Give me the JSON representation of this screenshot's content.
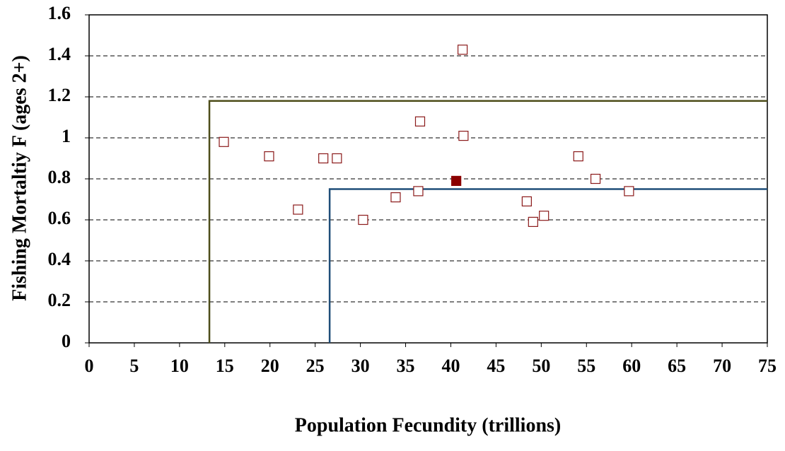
{
  "chart_data": {
    "type": "scatter",
    "x_label": "Population Fecundity (trillions)",
    "y_label": "Fishing Mortaltiy F (ages 2+)",
    "xlim": [
      0,
      75
    ],
    "xticks": [
      0,
      5,
      10,
      15,
      20,
      25,
      30,
      35,
      40,
      45,
      50,
      55,
      60,
      65,
      70,
      75
    ],
    "ylim": [
      0,
      1.6
    ],
    "yticks": [
      0,
      0.2,
      0.4,
      0.6,
      0.8,
      1,
      1.2,
      1.4,
      1.6
    ],
    "grid": true,
    "series": [
      {
        "color": "#8b1a1a",
        "filled": false,
        "x": [
          14.9,
          19.9,
          23.1,
          25.9,
          27.4,
          30.3,
          33.9,
          36.4,
          36.6,
          41.3,
          41.4,
          48.4,
          49.1,
          50.3,
          54.1,
          56.0,
          59.7
        ],
        "values": [
          0.98,
          0.91,
          0.65,
          0.9,
          0.9,
          0.6,
          0.71,
          0.74,
          1.08,
          1.43,
          1.01,
          0.69,
          0.59,
          0.62,
          0.91,
          0.8,
          0.74
        ]
      },
      {
        "color": "#8b0000",
        "filled": true,
        "x": [
          40.6
        ],
        "values": [
          0.79
        ]
      }
    ],
    "reference_lines": [
      {
        "x": 13.3,
        "y": 1.18,
        "color": "#4d4d1a"
      },
      {
        "x": 26.6,
        "y": 0.75,
        "color": "#1f4e79"
      }
    ]
  }
}
